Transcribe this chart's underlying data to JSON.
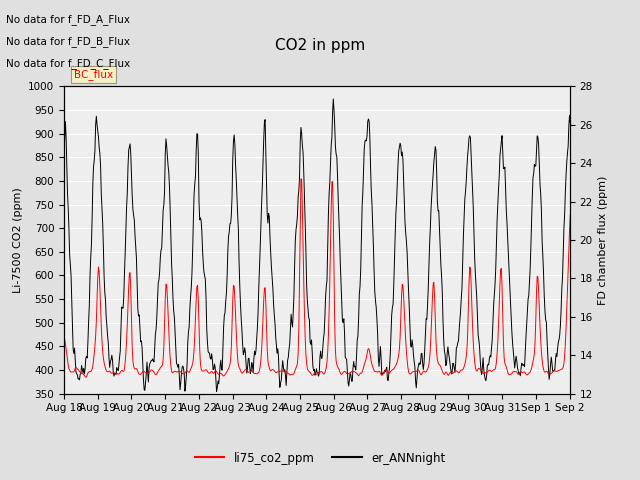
{
  "title": "CO2 in ppm",
  "ylabel_left": "Li-7500 CO2 (ppm)",
  "ylabel_right": "FD chamber flux (ppm)",
  "ylim_left": [
    350,
    1000
  ],
  "ylim_right": [
    12,
    28
  ],
  "no_data_texts": [
    "No data for f_FD_A_Flux",
    "No data for f_FD_B_Flux",
    "No data for f_FD_C_Flux"
  ],
  "bc_flux_label": "BC_flux",
  "legend_entries": [
    "li75_co2_ppm",
    "er_ANNnight"
  ],
  "line_colors": [
    "red",
    "black"
  ],
  "bg_color": "#e0e0e0",
  "plot_bg_color": "#eeeeee",
  "title_fontsize": 11,
  "label_fontsize": 8,
  "tick_fontsize": 7.5,
  "annotation_fontsize": 7.5,
  "figsize": [
    6.4,
    4.8
  ],
  "dpi": 100
}
